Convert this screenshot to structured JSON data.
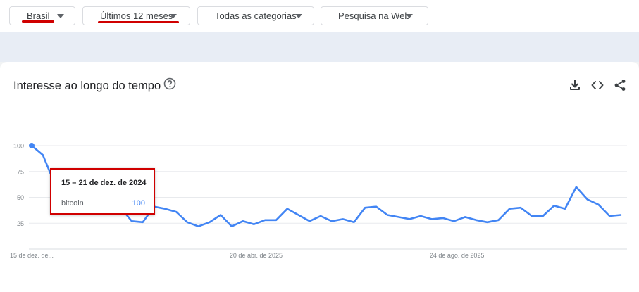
{
  "filters": [
    {
      "label": "Brasil"
    },
    {
      "label": "Últimos 12 meses"
    },
    {
      "label": "Todas as categorias"
    },
    {
      "label": "Pesquisa na Web"
    }
  ],
  "card": {
    "title": "Interesse ao longo do tempo",
    "icons": [
      "help-icon",
      "download-icon",
      "embed-code-icon",
      "share-icon"
    ]
  },
  "tooltip": {
    "date": "15 – 21 de dez. de 2024",
    "term": "bitcoin",
    "value": "100"
  },
  "colors": {
    "series": "#4285f4",
    "highlight": "#d00000"
  },
  "chart_data": {
    "type": "line",
    "ylim": [
      0,
      100
    ],
    "y_ticks": [
      25,
      50,
      75,
      100
    ],
    "x_tick_labels": [
      {
        "index": 0,
        "label": "15 de dez. de..."
      },
      {
        "index": 18,
        "label": "20 de abr. de 2025"
      },
      {
        "index": 36,
        "label": "24 de ago. de 2025"
      }
    ],
    "grid": true,
    "series": [
      {
        "name": "bitcoin",
        "values": [
          100,
          91,
          65,
          59,
          58,
          53,
          55,
          41,
          40,
          27,
          26,
          41,
          39,
          36,
          26,
          22,
          26,
          33,
          22,
          27,
          24,
          28,
          28,
          39,
          33,
          27,
          32,
          27,
          29,
          26,
          40,
          41,
          33,
          31,
          29,
          32,
          29,
          30,
          27,
          31,
          28,
          26,
          28,
          39,
          40,
          32,
          32,
          42,
          39,
          60,
          48,
          43,
          32,
          33
        ]
      }
    ]
  }
}
